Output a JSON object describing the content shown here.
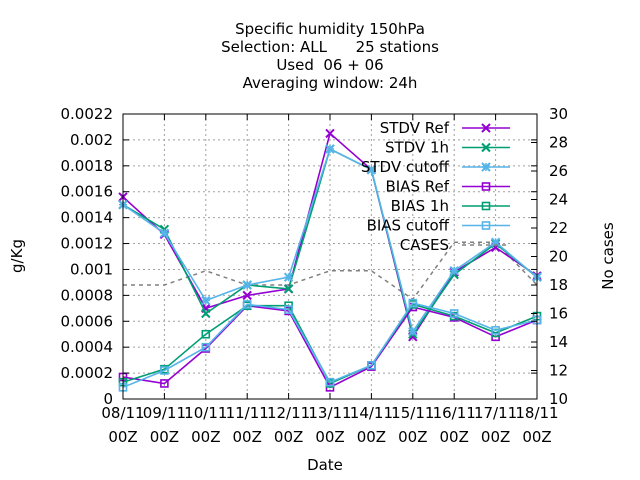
{
  "chart_data": {
    "type": "line",
    "title_lines": [
      "Specific humidity 150hPa",
      "Selection: ALL      25 stations",
      "Used  06 + 06",
      "Averaging window: 24h"
    ],
    "xlabel": "Date",
    "ylabel": "g/Kg",
    "y2label": "No cases",
    "categories": [
      "08/11\n00Z",
      "09/11\n00Z",
      "10/11\n00Z",
      "11/11\n00Z",
      "12/11\n00Z",
      "13/11\n00Z",
      "14/11\n00Z",
      "15/11\n00Z",
      "16/11\n00Z",
      "17/11\n00Z",
      "18/11\n00Z"
    ],
    "ylim": [
      0,
      0.0022
    ],
    "y_ticks": [
      "0",
      "0.0002",
      "0.0004",
      "0.0006",
      "0.0008",
      "0.001",
      "0.0012",
      "0.0014",
      "0.0016",
      "0.0018",
      "0.002",
      "0.0022"
    ],
    "y2lim": [
      10,
      30
    ],
    "y2_ticks": [
      "10",
      "12",
      "14",
      "16",
      "18",
      "20",
      "22",
      "24",
      "26",
      "28",
      "30"
    ],
    "grid": true,
    "legend_position": "top-right",
    "series": [
      {
        "name": "STDV Ref",
        "color": "#9400d3",
        "marker": "x",
        "axis": "y1",
        "values": [
          0.00156,
          0.00127,
          0.0007,
          0.0008,
          0.00085,
          0.00205,
          0.00177,
          0.00048,
          0.00098,
          0.00117,
          0.00095
        ]
      },
      {
        "name": "STDV 1h",
        "color": "#009e73",
        "marker": "x",
        "axis": "y1",
        "values": [
          0.0015,
          0.00131,
          0.00066,
          0.00088,
          0.00085,
          0.00193,
          0.00177,
          0.0005,
          0.00096,
          0.0012,
          0.00094
        ]
      },
      {
        "name": "STDV cutoff",
        "color": "#56b4e9",
        "marker": "star",
        "axis": "y1",
        "values": [
          0.0015,
          0.00128,
          0.00076,
          0.00088,
          0.00094,
          0.00193,
          0.00177,
          0.00052,
          0.00099,
          0.00121,
          0.00094
        ]
      },
      {
        "name": "BIAS Ref",
        "color": "#9400d3",
        "marker": "square",
        "axis": "y1",
        "values": [
          0.00017,
          0.00012,
          0.00039,
          0.00072,
          0.00068,
          9e-05,
          0.00025,
          0.00071,
          0.00063,
          0.00048,
          0.00061
        ]
      },
      {
        "name": "BIAS 1h",
        "color": "#009e73",
        "marker": "square",
        "axis": "y1",
        "values": [
          0.00013,
          0.00023,
          0.0005,
          0.00072,
          0.00072,
          0.00012,
          0.00026,
          0.00073,
          0.00064,
          0.00051,
          0.00064
        ]
      },
      {
        "name": "BIAS cutoff",
        "color": "#56b4e9",
        "marker": "square",
        "axis": "y1",
        "values": [
          9e-05,
          0.00022,
          0.0004,
          0.00073,
          0.00069,
          0.00013,
          0.00026,
          0.00074,
          0.00066,
          0.00053,
          0.00061
        ]
      },
      {
        "name": "CASES",
        "color": "#808080",
        "marker": "none",
        "dashed": true,
        "axis": "y2",
        "values": [
          18,
          18,
          19,
          18,
          18,
          19,
          19,
          17,
          21,
          21,
          18
        ]
      }
    ]
  }
}
